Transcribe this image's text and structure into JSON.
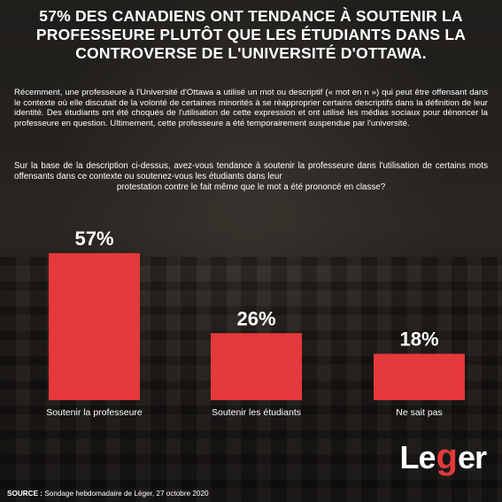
{
  "title": "57% DES CANADIENS ONT TENDANCE À SOUTENIR LA PROFESSEURE PLUTÔT QUE LES ÉTUDIANTS DANS LA CONTROVERSE DE L'UNIVERSITÉ D'OTTAWA.",
  "description": "Récemment, une professeure à l'Université d'Ottawa a utilisé un mot ou descriptif (« mot en n ») qui peut être offensant dans le contexte où elle discutait de la volonté de certaines minorités à se réapproprier certains descriptifs dans la définition de leur identité. Des étudiants ont été choqués de l'utilisation de cette expression et ont utilisé les médias sociaux pour dénoncer la professeure en question. Ultimement, cette professeure a été temporairement suspendue par l'université.",
  "question": "Sur la base de la description ci-dessus, avez-vous tendance à soutenir la professeure dans l'utilisation de certains mots offensants dans ce contexte ou soutenez-vous les étudiants dans leur",
  "question_last": "protestation contre le fait même que le mot a été prononcé en classe?",
  "source_label": "SOURCE :",
  "source_text": "Sondage hebdomadaire de Léger, 27 octobre 2020",
  "logo": {
    "before": "Le",
    "mark": "g",
    "after": "er"
  },
  "colors": {
    "bar": "#e5393b",
    "text": "#ffffff"
  },
  "chart_data": {
    "type": "bar",
    "categories": [
      "Soutenir la professeure",
      "Soutenir les étudiants",
      "Ne sait pas"
    ],
    "values": [
      57,
      26,
      18
    ],
    "value_labels": [
      "57%",
      "26%",
      "18%"
    ],
    "ylim": [
      0,
      57
    ]
  }
}
